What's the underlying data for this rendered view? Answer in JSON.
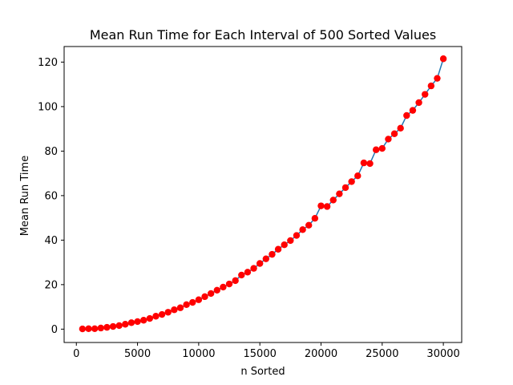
{
  "chart_data": {
    "type": "line",
    "title": "Mean Run Time for Each Interval of 500 Sorted Values",
    "xlabel": "n Sorted",
    "ylabel": "Mean Run Time",
    "xlim": [
      -1000,
      31500
    ],
    "ylim": [
      -6,
      127
    ],
    "xticks": [
      0,
      5000,
      10000,
      15000,
      20000,
      25000,
      30000
    ],
    "yticks": [
      0,
      20,
      40,
      60,
      80,
      100,
      120
    ],
    "grid": false,
    "legend": "none",
    "series": [
      {
        "line_color": "#1f77b4",
        "marker_color": "#ff0000",
        "x": [
          500,
          1000,
          1500,
          2000,
          2500,
          3000,
          3500,
          4000,
          4500,
          5000,
          5500,
          6000,
          6500,
          7000,
          7500,
          8000,
          8500,
          9000,
          9500,
          10000,
          10500,
          11000,
          11500,
          12000,
          12500,
          13000,
          13500,
          14000,
          14500,
          15000,
          15500,
          16000,
          16500,
          17000,
          17500,
          18000,
          18500,
          19000,
          19500,
          20000,
          20500,
          21000,
          21500,
          22000,
          22500,
          23000,
          23500,
          24000,
          24500,
          25000,
          25500,
          26000,
          26500,
          27000,
          27500,
          28000,
          28500,
          29000,
          29500,
          30000
        ],
        "y": [
          0.1,
          0.2,
          0.2,
          0.5,
          0.8,
          1.2,
          1.6,
          2.2,
          2.9,
          3.4,
          4.0,
          4.8,
          5.8,
          6.6,
          7.6,
          8.7,
          9.6,
          11.0,
          12.0,
          13.2,
          14.6,
          16.0,
          17.5,
          18.9,
          20.3,
          21.8,
          24.3,
          25.6,
          27.3,
          29.5,
          31.6,
          33.6,
          35.9,
          37.9,
          39.8,
          42.1,
          44.7,
          46.7,
          49.8,
          55.4,
          55.1,
          58.0,
          60.8,
          63.6,
          66.3,
          68.9,
          74.7,
          74.4,
          80.6,
          81.2,
          85.4,
          87.8,
          90.3,
          96.0,
          98.3,
          101.8,
          105.5,
          109.3,
          112.7,
          121.5
        ]
      }
    ]
  }
}
